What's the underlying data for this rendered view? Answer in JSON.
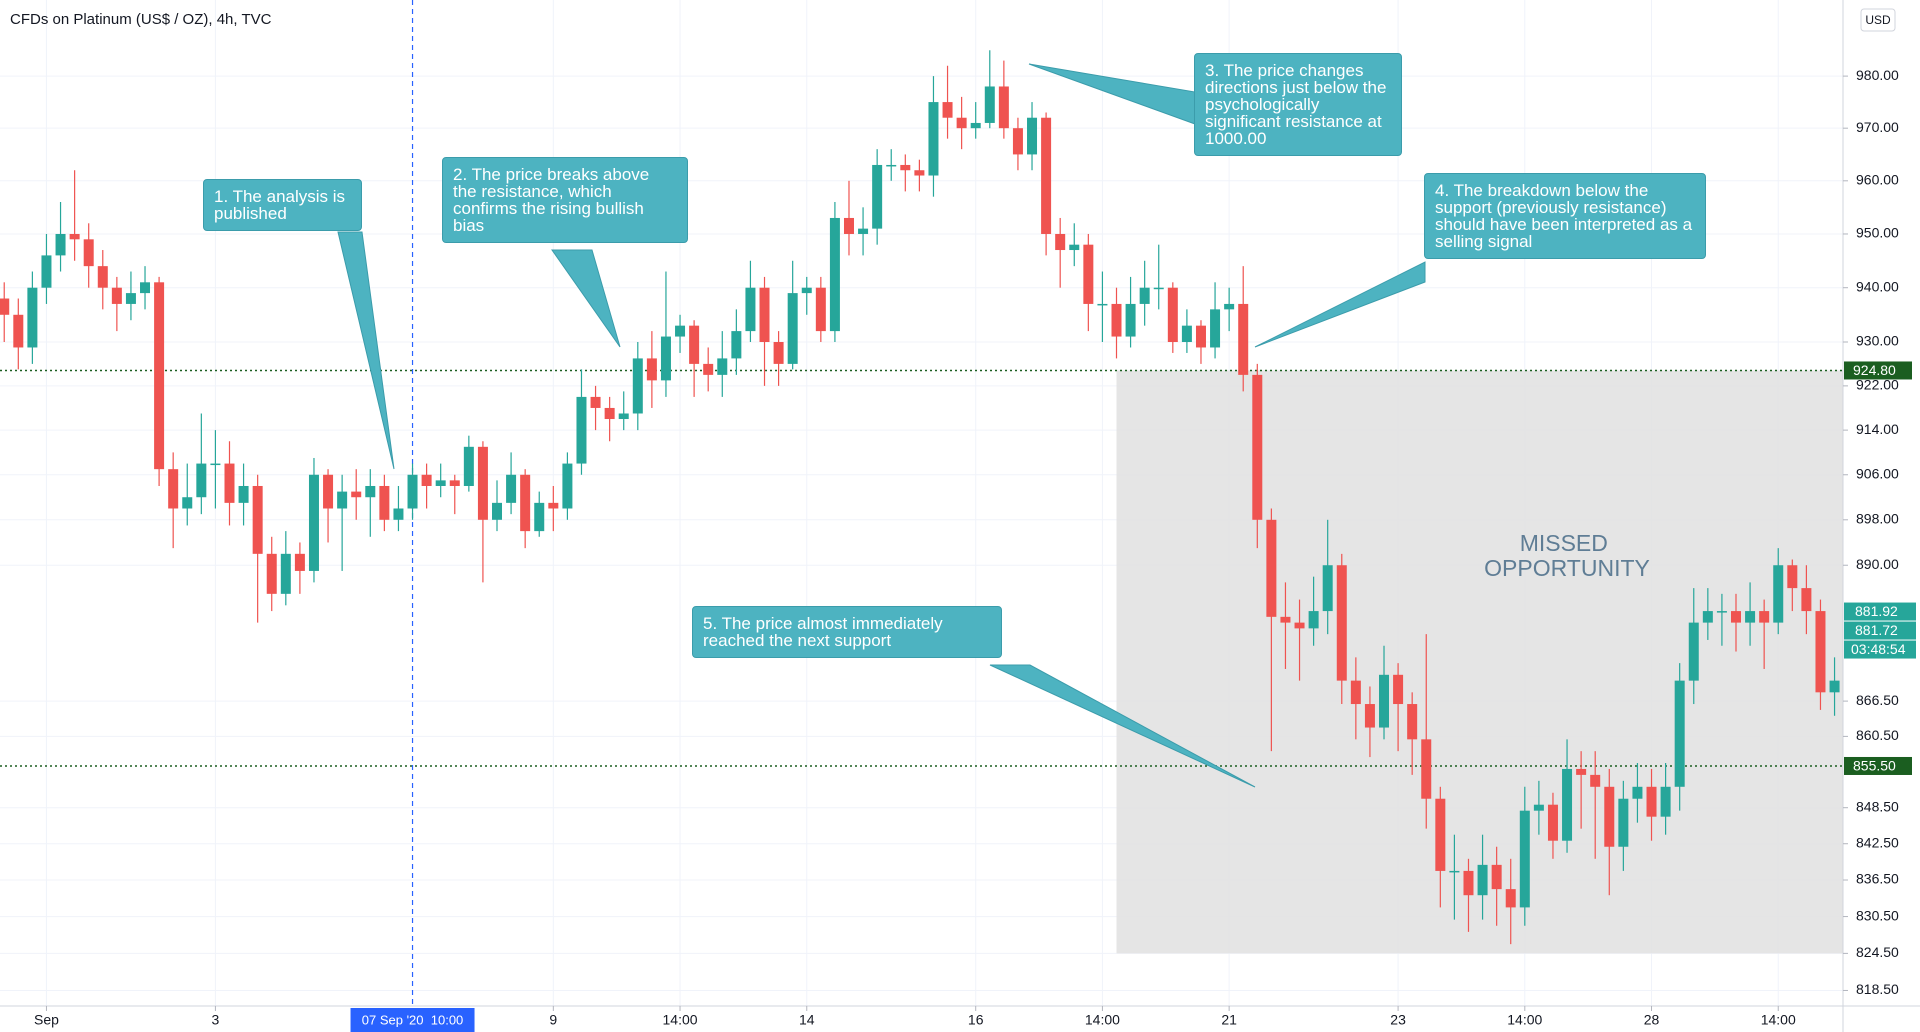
{
  "chart_data": {
    "type": "candlestick",
    "title": "CFDs on Platinum (US$ / OZ), 4h, TVC",
    "currency": "USD",
    "log_scale": true,
    "grid": true,
    "up_color": "#26a69a",
    "down_color": "#ef5350",
    "xlim": [
      -0.3,
      130.6
    ],
    "xticks": [
      {
        "value": 3,
        "label": "Sep"
      },
      {
        "value": 15,
        "label": "3"
      },
      {
        "value": 39,
        "label": "9"
      },
      {
        "value": 48,
        "label": "14:00"
      },
      {
        "value": 57,
        "label": "14"
      },
      {
        "value": 69,
        "label": "16"
      },
      {
        "value": 78,
        "label": "14:00"
      },
      {
        "value": 87,
        "label": "21"
      },
      {
        "value": 99,
        "label": "23"
      },
      {
        "value": 108,
        "label": "14:00"
      },
      {
        "value": 117,
        "label": "28"
      },
      {
        "value": 126,
        "label": "14:00"
      }
    ],
    "ylim": [
      816,
      994.8
    ],
    "yticks": [
      {
        "value": 980,
        "label": "980.00"
      },
      {
        "value": 970,
        "label": "970.00"
      },
      {
        "value": 960,
        "label": "960.00"
      },
      {
        "value": 950,
        "label": "950.00"
      },
      {
        "value": 940,
        "label": "940.00"
      },
      {
        "value": 930,
        "label": "930.00"
      },
      {
        "value": 922,
        "label": "922.00"
      },
      {
        "value": 914,
        "label": "914.00"
      },
      {
        "value": 906,
        "label": "906.00"
      },
      {
        "value": 898,
        "label": "898.00"
      },
      {
        "value": 890,
        "label": "890.00"
      },
      {
        "value": 866.5,
        "label": "866.50"
      },
      {
        "value": 860.5,
        "label": "860.50"
      },
      {
        "value": 848.5,
        "label": "848.50"
      },
      {
        "value": 842.5,
        "label": "842.50"
      },
      {
        "value": 836.5,
        "label": "836.50"
      },
      {
        "value": 830.5,
        "label": "830.50"
      },
      {
        "value": 824.5,
        "label": "824.50"
      },
      {
        "value": 818.5,
        "label": "818.50"
      }
    ],
    "open": [
      938,
      935,
      929,
      940,
      946,
      950,
      949,
      944,
      940,
      937,
      939,
      941,
      907,
      900,
      902,
      908,
      908,
      901,
      904,
      892,
      885,
      892,
      889,
      906,
      900,
      903,
      902,
      904,
      898,
      900,
      906,
      904,
      905,
      904,
      911,
      898,
      901,
      906,
      896,
      901,
      900,
      908,
      920,
      918,
      916,
      917,
      927,
      923,
      931,
      933,
      926,
      924,
      927,
      932,
      940,
      930,
      926,
      939,
      940,
      932,
      953,
      950,
      951,
      963,
      963,
      962,
      961,
      975,
      972,
      970,
      971,
      978,
      970,
      965,
      972,
      950,
      947,
      948,
      937,
      937,
      931,
      937,
      940,
      940,
      930,
      933,
      929,
      936,
      937,
      924,
      898,
      881,
      880,
      879,
      882,
      890,
      870,
      866,
      862,
      871,
      866,
      860,
      850,
      838,
      838,
      834,
      839,
      835,
      832,
      848,
      849,
      843,
      855,
      854,
      852,
      842,
      850,
      852,
      847,
      852,
      870,
      880,
      882,
      882,
      880,
      882,
      880,
      890,
      886,
      882,
      868
    ],
    "high": [
      941,
      938,
      943,
      950,
      956,
      962,
      952,
      947,
      942,
      943,
      944,
      942,
      910,
      908,
      917,
      914,
      912,
      908,
      906,
      895,
      896,
      894,
      909,
      907,
      906,
      907,
      907,
      906,
      904,
      908,
      908,
      908,
      906,
      913,
      912,
      905,
      910,
      907,
      903,
      904,
      910,
      925,
      922,
      920,
      921,
      930,
      932,
      943,
      935,
      934,
      929,
      932,
      936,
      945,
      942,
      932,
      945,
      942,
      942,
      956,
      960,
      955,
      966,
      966,
      965,
      964,
      980,
      982,
      976,
      975,
      985,
      983,
      972,
      975,
      973,
      953,
      952,
      950,
      943,
      940,
      942,
      945,
      948,
      941,
      936,
      934,
      941,
      940,
      944,
      926,
      900,
      887,
      884,
      888,
      898,
      892,
      874,
      869,
      876,
      873,
      868,
      878,
      852,
      844,
      840,
      844,
      842,
      840,
      852,
      853,
      851,
      860,
      858,
      858,
      855,
      853,
      856,
      855,
      856,
      873,
      886,
      886,
      885,
      885,
      887,
      884,
      893,
      891,
      890,
      884,
      874
    ],
    "low": [
      930,
      925,
      926,
      937,
      943,
      945,
      940,
      936,
      932,
      934,
      936,
      904,
      893,
      897,
      899,
      900,
      897,
      897,
      880,
      882,
      883,
      885,
      887,
      894,
      889,
      898,
      895,
      896,
      896,
      898,
      900,
      902,
      899,
      903,
      887,
      896,
      899,
      893,
      895,
      896,
      898,
      906,
      914,
      912,
      914,
      914,
      918,
      920,
      928,
      920,
      921,
      920,
      924,
      930,
      922,
      922,
      925,
      935,
      930,
      930,
      946,
      946,
      948,
      960,
      958,
      958,
      957,
      968,
      966,
      968,
      970,
      968,
      962,
      962,
      946,
      940,
      944,
      932,
      930,
      927,
      929,
      933,
      936,
      928,
      928,
      926,
      927,
      932,
      921,
      893,
      858,
      872,
      870,
      876,
      878,
      866,
      860,
      857,
      860,
      858,
      854,
      845,
      832,
      830,
      828,
      830,
      829,
      826,
      829,
      844,
      840,
      841,
      845,
      840,
      834,
      838,
      846,
      843,
      844,
      848,
      866,
      877,
      876,
      875,
      876,
      872,
      878,
      882,
      878,
      865,
      864
    ],
    "close": [
      935,
      929,
      940,
      946,
      950,
      949,
      944,
      940,
      937,
      939,
      941,
      907,
      900,
      902,
      908,
      908,
      901,
      904,
      892,
      885,
      892,
      889,
      906,
      900,
      903,
      902,
      904,
      898,
      900,
      906,
      904,
      905,
      904,
      911,
      898,
      901,
      906,
      896,
      901,
      900,
      908,
      920,
      918,
      916,
      917,
      927,
      923,
      931,
      933,
      926,
      924,
      927,
      932,
      940,
      930,
      926,
      939,
      940,
      932,
      953,
      950,
      951,
      963,
      963,
      962,
      961,
      975,
      972,
      970,
      971,
      978,
      970,
      965,
      972,
      950,
      947,
      948,
      937,
      937,
      931,
      937,
      940,
      940,
      930,
      933,
      929,
      936,
      937,
      924,
      898,
      881,
      880,
      879,
      882,
      890,
      870,
      866,
      862,
      871,
      866,
      860,
      850,
      838,
      838,
      834,
      839,
      835,
      832,
      848,
      849,
      843,
      855,
      854,
      852,
      842,
      850,
      852,
      847,
      852,
      870,
      880,
      882,
      882,
      880,
      882,
      880,
      890,
      886,
      882,
      868,
      870
    ],
    "levels": [
      {
        "value": 924.8,
        "label": "924.80",
        "color": "#1b5e20"
      },
      {
        "value": 855.5,
        "label": "855.50",
        "color": "#1b5e20"
      }
    ],
    "price_labels": [
      {
        "value": 881.92,
        "label": "881.92"
      },
      {
        "value": 881.72,
        "label": "881.72"
      }
    ],
    "countdown": "03:48:54",
    "marker": {
      "x": 29,
      "label": "07 Sep '20  10:00",
      "color": "#2962ff"
    },
    "zone": {
      "x": [
        79,
        130.6
      ],
      "y": [
        824.5,
        924.8
      ],
      "label": "MISSED OPPORTUNITY"
    },
    "annotations": [
      "1. The analysis is published",
      "2. The price breaks above the resistance, which confirms the rising bullish bias",
      "3. The price changes directions just below the psychologically significant resistance at 1000.00",
      "4. The breakdown below the support (previously resistance) should have been interpreted as a selling signal",
      "5. The price almost immediately reached the next support"
    ]
  }
}
